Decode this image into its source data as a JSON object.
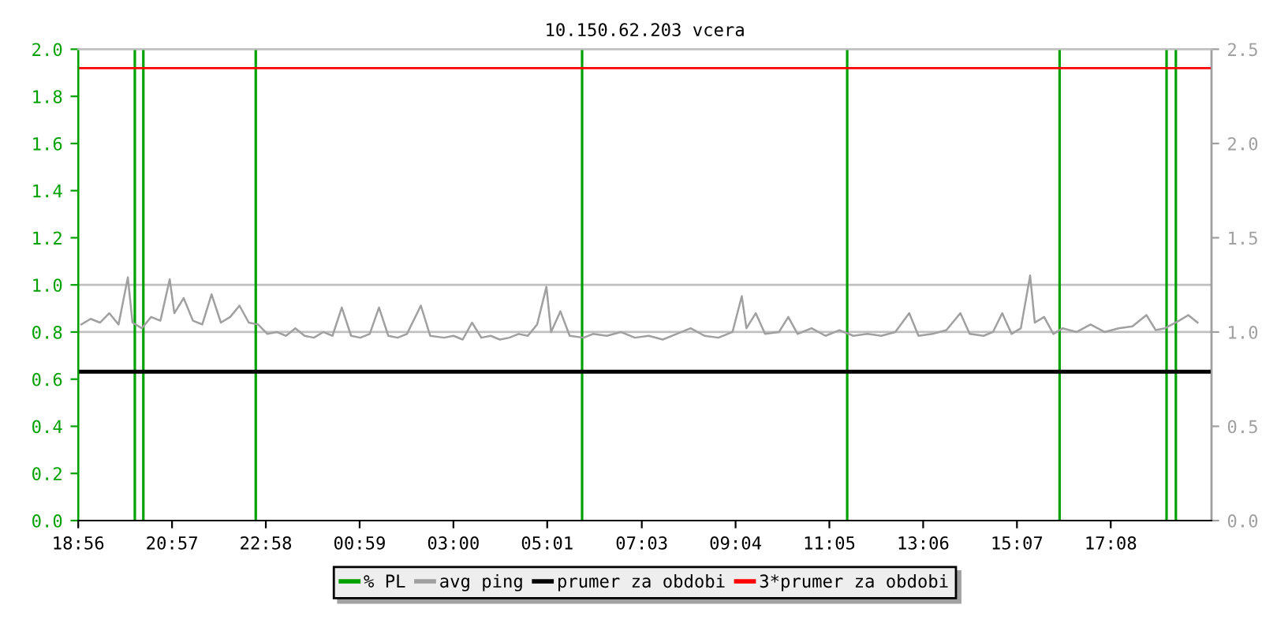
{
  "chart_data": {
    "type": "line",
    "title": "10.150.62.203 vcera",
    "xlim": [
      "2000-01-01T18:56",
      "2000-01-02T19:18"
    ],
    "xticks": [
      {
        "value": "2000-01-01T18:56",
        "label": "18:56"
      },
      {
        "value": "2000-01-01T20:57",
        "label": "20:57"
      },
      {
        "value": "2000-01-01T22:58",
        "label": "22:58"
      },
      {
        "value": "2000-01-02T00:59",
        "label": "00:59"
      },
      {
        "value": "2000-01-02T03:00",
        "label": "03:00"
      },
      {
        "value": "2000-01-02T05:01",
        "label": "05:01"
      },
      {
        "value": "2000-01-02T07:03",
        "label": "07:03"
      },
      {
        "value": "2000-01-02T09:04",
        "label": "09:04"
      },
      {
        "value": "2000-01-02T11:05",
        "label": "11:05"
      },
      {
        "value": "2000-01-02T13:06",
        "label": "13:06"
      },
      {
        "value": "2000-01-02T15:07",
        "label": "15:07"
      },
      {
        "value": "2000-01-02T17:08",
        "label": "17:08"
      }
    ],
    "ylim": [
      0,
      2.0
    ],
    "yticks": [
      {
        "value": 0,
        "label": "0.0"
      },
      {
        "value": 0.2,
        "label": "0.2"
      },
      {
        "value": 0.4,
        "label": "0.4"
      },
      {
        "value": 0.6,
        "label": "0.6"
      },
      {
        "value": 0.8,
        "label": "0.8"
      },
      {
        "value": 1.0,
        "label": "1.0"
      },
      {
        "value": 1.2,
        "label": "1.2"
      },
      {
        "value": 1.4,
        "label": "1.4"
      },
      {
        "value": 1.6,
        "label": "1.6"
      },
      {
        "value": 1.8,
        "label": "1.8"
      },
      {
        "value": 2.0,
        "label": "2.0"
      }
    ],
    "y2lim": [
      0,
      2.5
    ],
    "y2ticks": [
      {
        "value": 0,
        "label": "0.0"
      },
      {
        "value": 0.5,
        "label": "0.5"
      },
      {
        "value": 1.0,
        "label": "1.0"
      },
      {
        "value": 1.5,
        "label": "1.5"
      },
      {
        "value": 2.0,
        "label": "2.0"
      },
      {
        "value": 2.5,
        "label": "2.5"
      }
    ],
    "legend": "bottom",
    "series": [
      {
        "name": "% PL",
        "type": "bar",
        "color": "#00a000",
        "x": [
          "2000-01-01T20:09",
          "2000-01-01T20:20",
          "2000-01-01T22:45",
          "2000-01-02T05:46",
          "2000-01-02T11:28",
          "2000-01-02T16:02",
          "2000-01-02T18:20",
          "2000-01-02T18:32"
        ],
        "values": [
          2.0,
          2.0,
          2.0,
          2.0,
          2.0,
          2.0,
          2.0,
          2.0
        ]
      },
      {
        "name": "avg ping",
        "axis": "y2",
        "color": "#a0a0a0",
        "x": [
          "2000-01-01T19:00",
          "2000-01-01T19:12",
          "2000-01-01T19:24",
          "2000-01-01T19:36",
          "2000-01-01T19:48",
          "2000-01-01T20:00",
          "2000-01-01T20:06",
          "2000-01-01T20:18",
          "2000-01-01T20:30",
          "2000-01-01T20:42",
          "2000-01-01T20:54",
          "2000-01-01T21:00",
          "2000-01-01T21:12",
          "2000-01-01T21:24",
          "2000-01-01T21:36",
          "2000-01-01T21:48",
          "2000-01-01T22:00",
          "2000-01-01T22:12",
          "2000-01-01T22:24",
          "2000-01-01T22:36",
          "2000-01-01T22:48",
          "2000-01-01T23:00",
          "2000-01-01T23:12",
          "2000-01-01T23:24",
          "2000-01-01T23:36",
          "2000-01-01T23:48",
          "2000-01-02T00:00",
          "2000-01-02T00:12",
          "2000-01-02T00:24",
          "2000-01-02T00:36",
          "2000-01-02T00:48",
          "2000-01-02T01:00",
          "2000-01-02T01:12",
          "2000-01-02T01:24",
          "2000-01-02T01:36",
          "2000-01-02T01:48",
          "2000-01-02T02:00",
          "2000-01-02T02:18",
          "2000-01-02T02:30",
          "2000-01-02T02:48",
          "2000-01-02T03:00",
          "2000-01-02T03:12",
          "2000-01-02T03:24",
          "2000-01-02T03:36",
          "2000-01-02T03:48",
          "2000-01-02T04:00",
          "2000-01-02T04:12",
          "2000-01-02T04:24",
          "2000-01-02T04:36",
          "2000-01-02T04:48",
          "2000-01-02T05:00",
          "2000-01-02T05:06",
          "2000-01-02T05:18",
          "2000-01-02T05:30",
          "2000-01-02T05:48",
          "2000-01-02T06:00",
          "2000-01-02T06:18",
          "2000-01-02T06:36",
          "2000-01-02T06:54",
          "2000-01-02T07:12",
          "2000-01-02T07:30",
          "2000-01-02T07:48",
          "2000-01-02T08:06",
          "2000-01-02T08:24",
          "2000-01-02T08:42",
          "2000-01-02T09:00",
          "2000-01-02T09:12",
          "2000-01-02T09:18",
          "2000-01-02T09:30",
          "2000-01-02T09:42",
          "2000-01-02T10:00",
          "2000-01-02T10:12",
          "2000-01-02T10:24",
          "2000-01-02T10:42",
          "2000-01-02T11:00",
          "2000-01-02T11:18",
          "2000-01-02T11:36",
          "2000-01-02T11:54",
          "2000-01-02T12:12",
          "2000-01-02T12:30",
          "2000-01-02T12:48",
          "2000-01-02T13:00",
          "2000-01-02T13:18",
          "2000-01-02T13:36",
          "2000-01-02T13:54",
          "2000-01-02T14:06",
          "2000-01-02T14:24",
          "2000-01-02T14:36",
          "2000-01-02T14:48",
          "2000-01-02T15:00",
          "2000-01-02T15:12",
          "2000-01-02T15:24",
          "2000-01-02T15:30",
          "2000-01-02T15:42",
          "2000-01-02T15:54",
          "2000-01-02T16:06",
          "2000-01-02T16:24",
          "2000-01-02T16:42",
          "2000-01-02T17:00",
          "2000-01-02T17:18",
          "2000-01-02T17:36",
          "2000-01-02T17:54",
          "2000-01-02T18:06",
          "2000-01-02T18:18",
          "2000-01-02T18:36",
          "2000-01-02T18:48",
          "2000-01-02T19:00"
        ],
        "values": [
          1.04,
          1.07,
          1.05,
          1.1,
          1.04,
          1.29,
          1.05,
          1.02,
          1.08,
          1.06,
          1.28,
          1.1,
          1.18,
          1.06,
          1.04,
          1.2,
          1.05,
          1.08,
          1.14,
          1.05,
          1.04,
          0.99,
          1.0,
          0.98,
          1.02,
          0.98,
          0.97,
          1.0,
          0.98,
          1.13,
          0.98,
          0.97,
          0.99,
          1.13,
          0.98,
          0.97,
          0.99,
          1.14,
          0.98,
          0.97,
          0.98,
          0.96,
          1.05,
          0.97,
          0.98,
          0.96,
          0.97,
          0.99,
          0.98,
          1.04,
          1.24,
          1.0,
          1.11,
          0.98,
          0.97,
          0.99,
          0.98,
          1.0,
          0.97,
          0.98,
          0.96,
          0.99,
          1.02,
          0.98,
          0.97,
          1.0,
          1.19,
          1.02,
          1.1,
          0.99,
          1.0,
          1.08,
          0.99,
          1.02,
          0.98,
          1.01,
          0.98,
          0.99,
          0.98,
          1.0,
          1.1,
          0.98,
          0.99,
          1.01,
          1.1,
          0.99,
          0.98,
          1.0,
          1.1,
          0.99,
          1.02,
          1.3,
          1.05,
          1.08,
          0.99,
          1.02,
          1.0,
          1.04,
          1.0,
          1.02,
          1.03,
          1.09,
          1.01,
          1.02,
          1.06,
          1.09,
          1.05
        ]
      }
    ],
    "ref_lines": [
      {
        "axis": "y",
        "value": 0.8,
        "color": "#c0c0c0"
      },
      {
        "axis": "y",
        "value": 1.0,
        "color": "#c0c0c0"
      },
      {
        "axis": "y2",
        "value": 0.79,
        "label": "prumer za obdobi",
        "color": "#000000"
      },
      {
        "axis": "y2",
        "value": 2.4,
        "label": "3*prumer za obdobi",
        "color": "#ff0000"
      }
    ]
  }
}
